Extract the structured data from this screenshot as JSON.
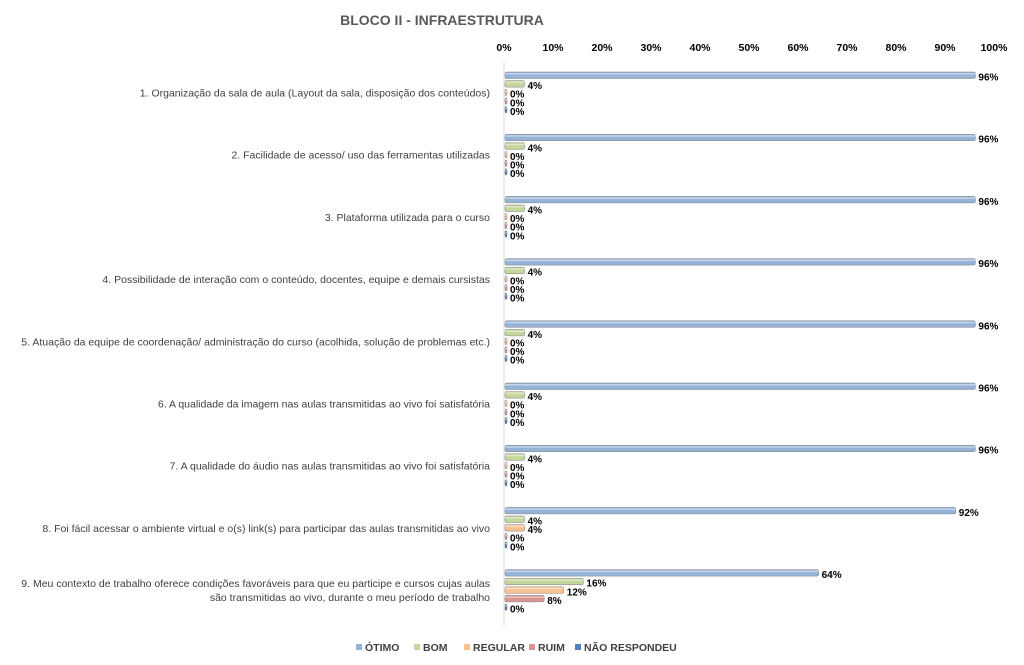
{
  "chart_data": {
    "type": "bar",
    "orientation": "horizontal",
    "title": "BLOCO II - INFRAESTRUTURA",
    "xlim": [
      0,
      100
    ],
    "x_ticks": [
      "0%",
      "10%",
      "20%",
      "30%",
      "40%",
      "50%",
      "60%",
      "70%",
      "80%",
      "90%",
      "100%"
    ],
    "categories": [
      [
        "1. Organização da sala de aula (Layout da sala, disposição dos conteúdos)"
      ],
      [
        "2. Facilidade de acesso/ uso das ferramentas utilizadas"
      ],
      [
        "3. Plataforma utilizada para o curso"
      ],
      [
        "4. Possibilidade de interação com o conteúdo, docentes, equipe e demais cursistas"
      ],
      [
        "5. Atuação da equipe de coordenação/ administração do curso (acolhida, solução de problemas etc.)"
      ],
      [
        "6. A qualidade da imagem nas aulas transmitidas ao vivo foi satisfatória"
      ],
      [
        "7. A qualidade do áudio nas aulas transmitidas ao vivo foi satisfatória"
      ],
      [
        "8. Foi fácil acessar o ambiente virtual e o(s) link(s) para participar das aulas transmitidas ao vivo"
      ],
      [
        "9. Meu contexto de trabalho oferece condições favoráveis para que eu participe e cursos cujas aulas",
        "são transmitidas ao vivo, durante o meu período de trabalho"
      ]
    ],
    "series": [
      {
        "name": "ÓTIMO",
        "color": "#95b3d7",
        "values": [
          96,
          96,
          96,
          96,
          96,
          96,
          96,
          92,
          64
        ]
      },
      {
        "name": "BOM",
        "color": "#c3d69b",
        "values": [
          4,
          4,
          4,
          4,
          4,
          4,
          4,
          4,
          16
        ]
      },
      {
        "name": "REGULAR",
        "color": "#fac090",
        "values": [
          0,
          0,
          0,
          0,
          0,
          0,
          0,
          4,
          12
        ]
      },
      {
        "name": "RUIM",
        "color": "#d99694",
        "values": [
          0,
          0,
          0,
          0,
          0,
          0,
          0,
          0,
          8
        ]
      },
      {
        "name": "NÃO RESPONDEU",
        "color": "#4f81bd",
        "values": [
          0,
          0,
          0,
          0,
          0,
          0,
          0,
          0,
          0
        ]
      }
    ],
    "value_suffix": "%",
    "legend": "bottom",
    "grid": false
  }
}
